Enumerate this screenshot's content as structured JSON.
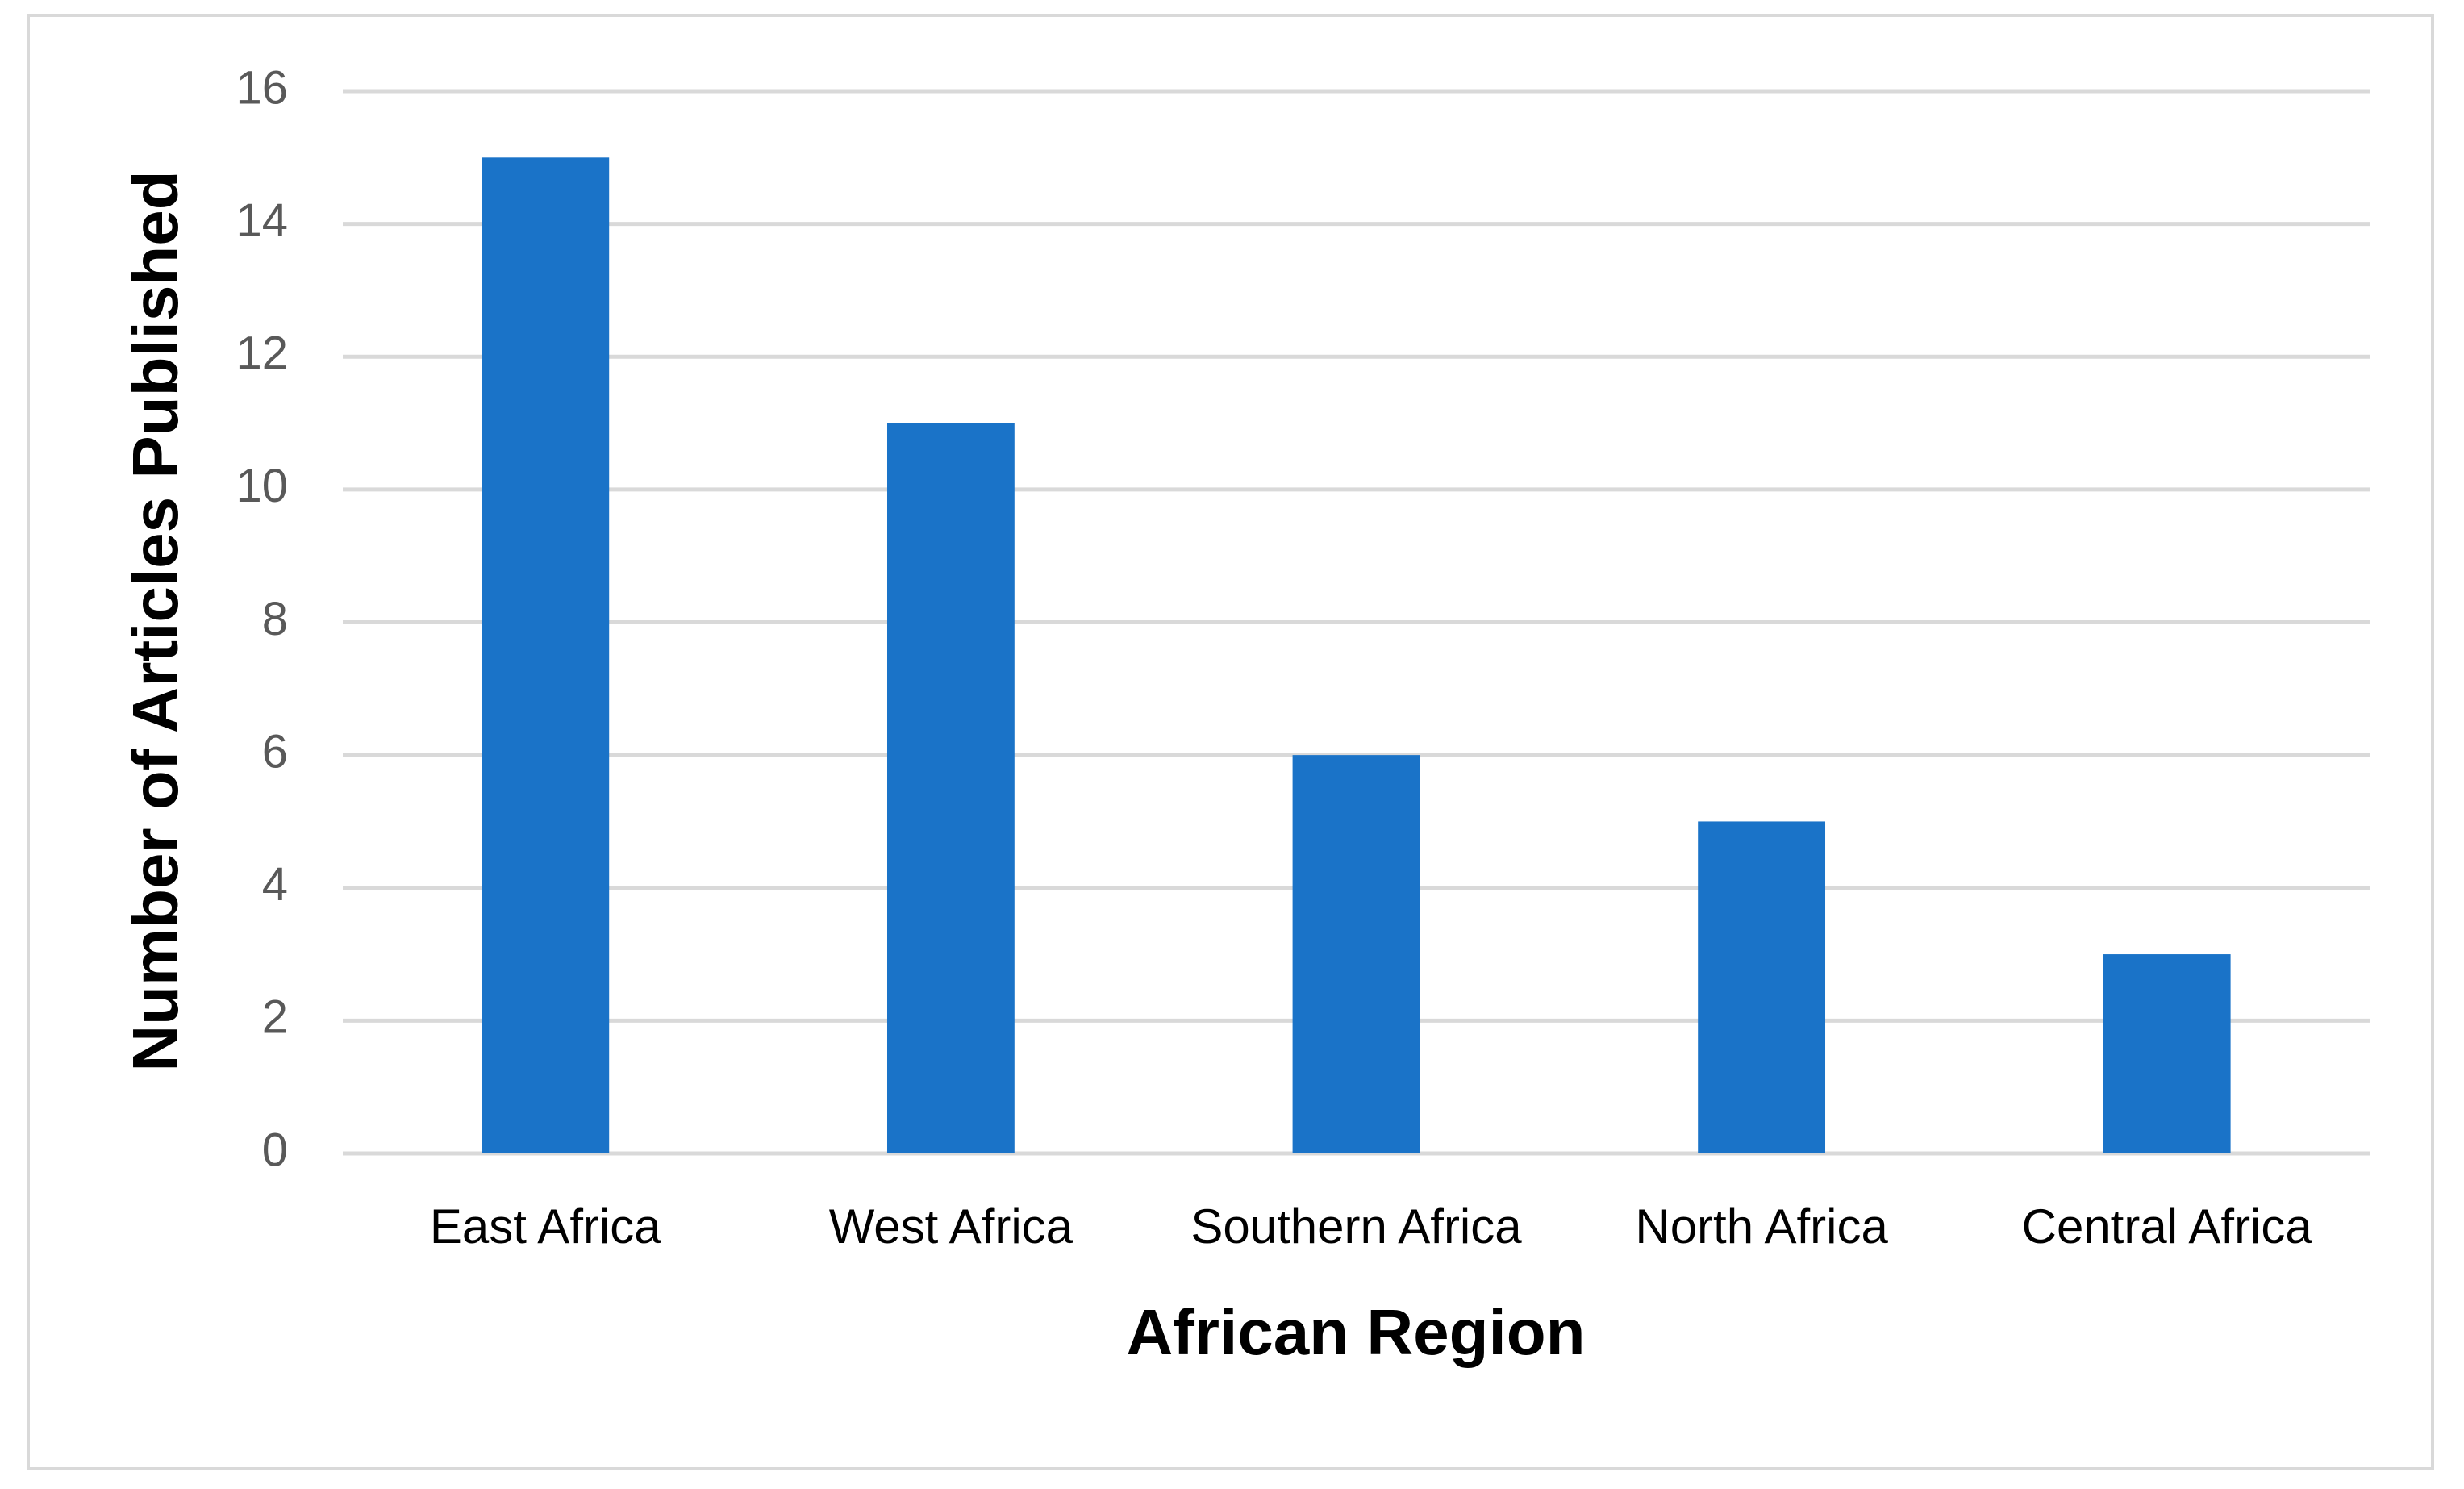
{
  "chart_data": {
    "type": "bar",
    "x_label": "African Region",
    "y_label": "Number of Articles Published",
    "categories": [
      "East Africa",
      "West Africa",
      "Southern Africa",
      "North Africa",
      "Central Africa"
    ],
    "values": [
      15,
      11,
      6,
      5,
      3
    ],
    "color": "#1a73c8",
    "ylim": [
      0,
      16
    ],
    "yticks": [
      0,
      2,
      4,
      6,
      8,
      10,
      12,
      14,
      16
    ],
    "grid": true
  }
}
